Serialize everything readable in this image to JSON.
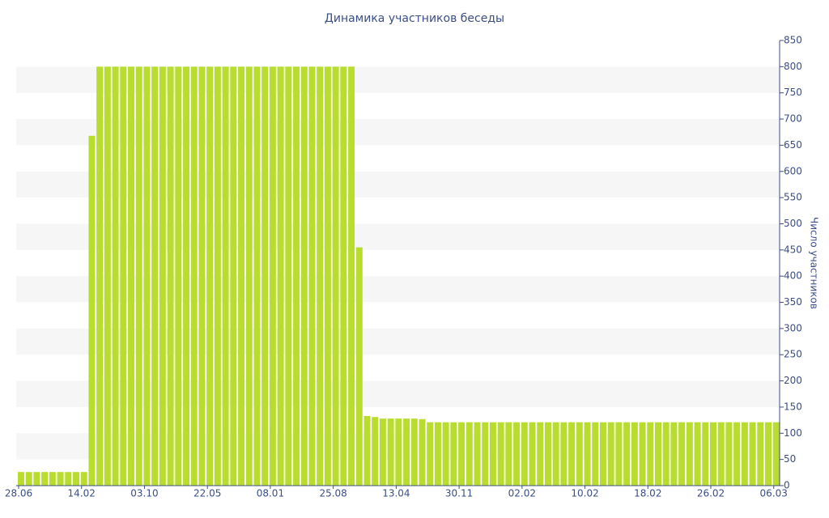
{
  "chart_data": {
    "type": "bar",
    "title": "Динамика участников беседы",
    "y_label": "Число участников",
    "color": "#b8dd2e",
    "grid": "bands",
    "categories": [
      "28.06",
      null,
      null,
      null,
      null,
      null,
      null,
      null,
      "14.02",
      null,
      null,
      null,
      null,
      null,
      null,
      null,
      "03.10",
      null,
      null,
      null,
      null,
      null,
      null,
      null,
      "22.05",
      null,
      null,
      null,
      null,
      null,
      null,
      null,
      "08.01",
      null,
      null,
      null,
      null,
      null,
      null,
      null,
      "25.08",
      null,
      null,
      null,
      null,
      null,
      null,
      null,
      "13.04",
      null,
      null,
      null,
      null,
      null,
      null,
      null,
      "30.11",
      null,
      null,
      null,
      null,
      null,
      null,
      null,
      "02.02",
      null,
      null,
      null,
      null,
      null,
      null,
      null,
      "10.02",
      null,
      null,
      null,
      null,
      null,
      null,
      null,
      "18.02",
      null,
      null,
      null,
      null,
      null,
      null,
      null,
      "26.02",
      null,
      null,
      null,
      null,
      null,
      null,
      null,
      "06.03"
    ],
    "values": [
      26,
      26,
      26,
      26,
      26,
      26,
      26,
      26,
      26,
      668,
      800,
      800,
      800,
      800,
      800,
      800,
      800,
      800,
      800,
      800,
      800,
      800,
      800,
      800,
      800,
      800,
      800,
      800,
      800,
      800,
      800,
      800,
      800,
      800,
      800,
      800,
      800,
      800,
      800,
      800,
      800,
      800,
      800,
      455,
      133,
      131,
      128,
      128,
      128,
      128,
      128,
      127,
      121,
      121,
      121,
      121,
      121,
      121,
      121,
      121,
      121,
      121,
      121,
      121,
      121,
      121,
      121,
      121,
      121,
      121,
      121,
      121,
      121,
      121,
      121,
      121,
      121,
      121,
      121,
      121,
      121,
      121,
      121,
      121,
      121,
      121,
      121,
      121,
      121,
      121,
      121,
      121,
      121,
      121,
      121,
      121,
      121
    ],
    "ylim": [
      0,
      850
    ],
    "yticks": [
      0,
      50,
      100,
      150,
      200,
      250,
      300,
      350,
      400,
      450,
      500,
      550,
      600,
      650,
      700,
      750,
      800,
      850
    ]
  }
}
